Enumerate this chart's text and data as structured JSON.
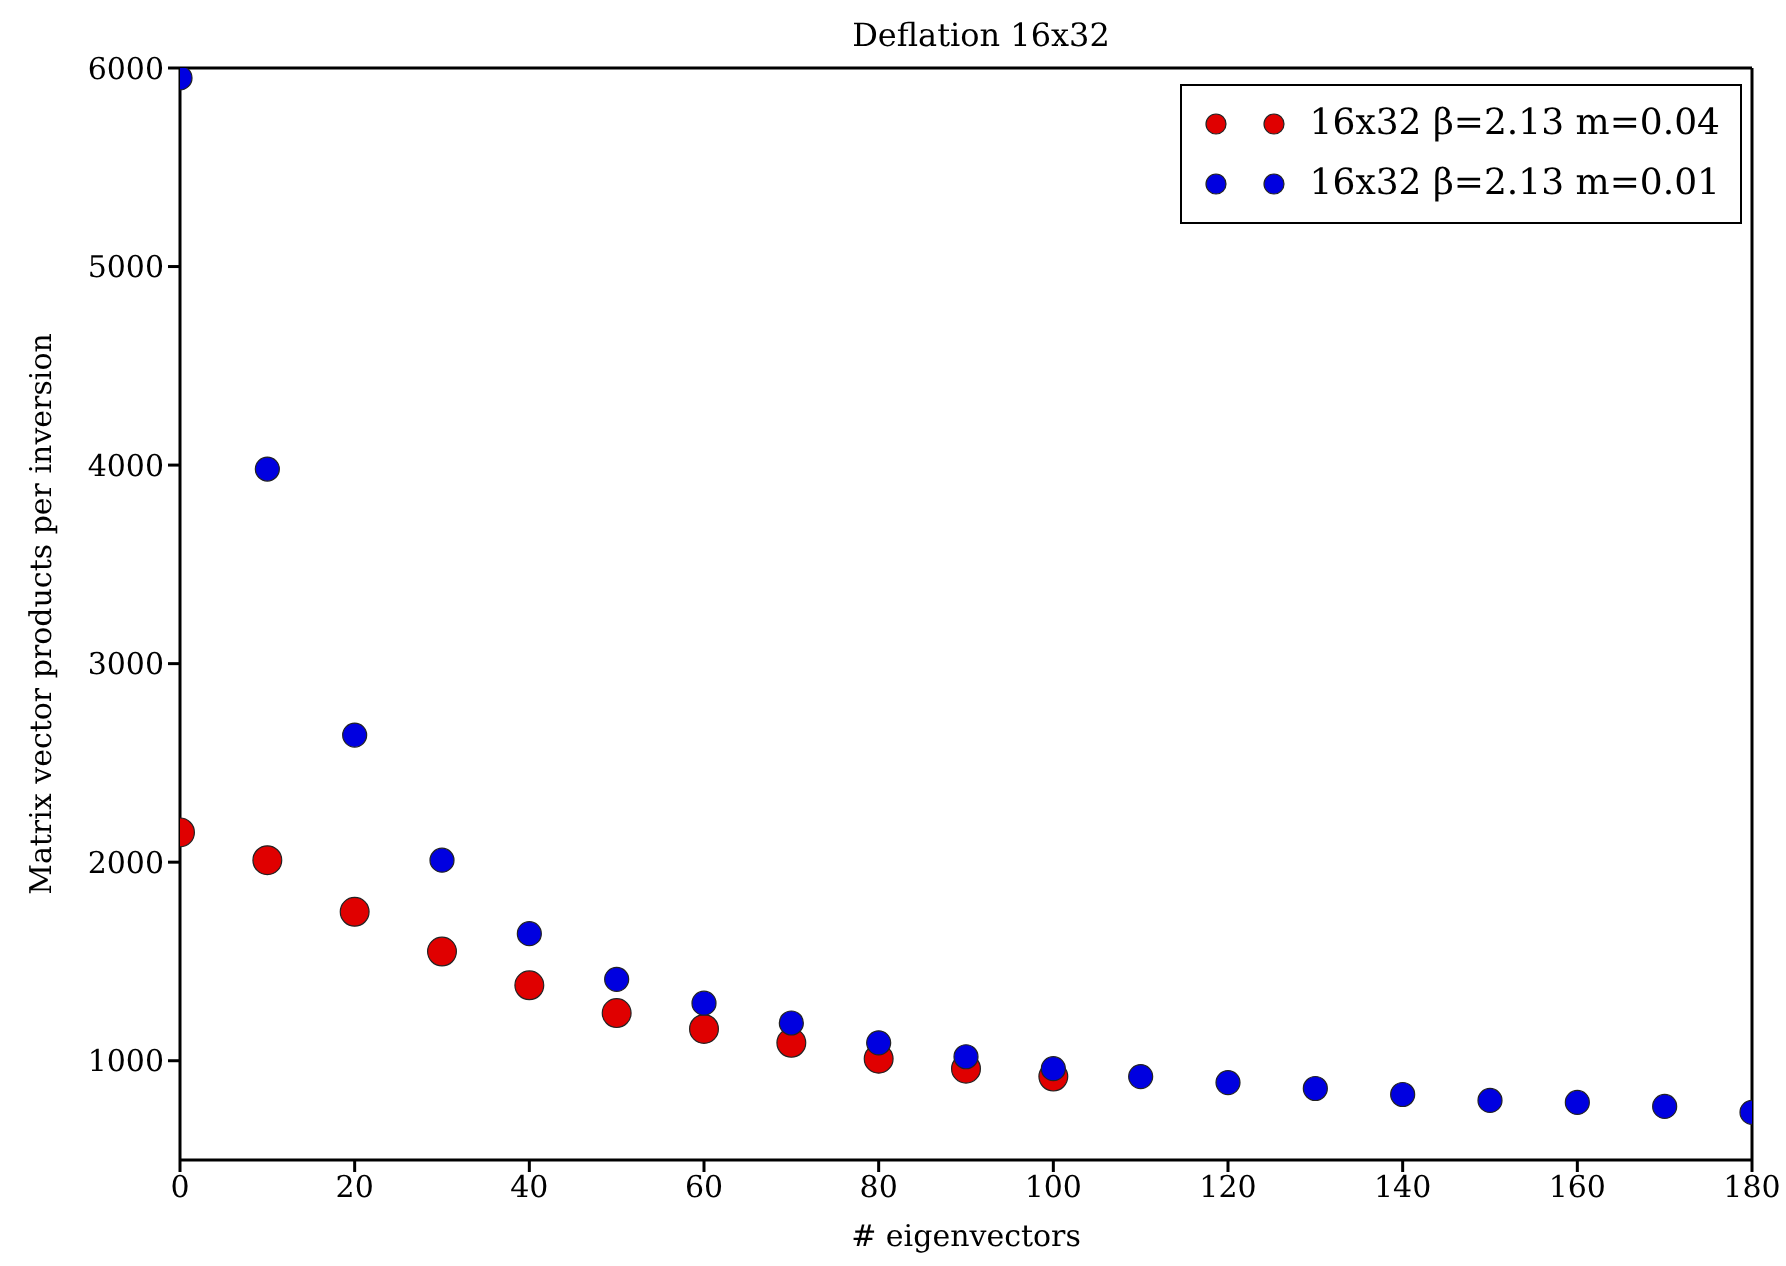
{
  "chart_data": {
    "type": "scatter",
    "title": "Deflation 16x32",
    "xlabel": "# eigenvectors",
    "ylabel": "Matrix vector products per inversion",
    "x": [
      0,
      10,
      20,
      30,
      40,
      50,
      60,
      70,
      80,
      90,
      100,
      110,
      120,
      130,
      140,
      150,
      160,
      170,
      180
    ],
    "series": [
      {
        "name": "16x32 β=2.13 m=0.04",
        "color": "#e00000",
        "values": [
          2150,
          2010,
          1750,
          1550,
          1380,
          1240,
          1160,
          1090,
          1010,
          960,
          920,
          null,
          null,
          null,
          null,
          null,
          null,
          null,
          null
        ]
      },
      {
        "name": "16x32 β=2.13 m=0.01",
        "color": "#0000e0",
        "values": [
          5950,
          3980,
          2640,
          2010,
          1640,
          1410,
          1290,
          1190,
          1090,
          1020,
          960,
          920,
          890,
          860,
          830,
          800,
          790,
          770,
          740
        ]
      }
    ],
    "xlim": [
      0,
      180
    ],
    "xticks": [
      0,
      20,
      40,
      60,
      80,
      100,
      120,
      140,
      160,
      180
    ],
    "ylim": [
      500,
      6000
    ],
    "yticks": [
      1000,
      2000,
      3000,
      4000,
      5000,
      6000
    ],
    "grid": false,
    "legend": "top right",
    "marker": "circle"
  }
}
